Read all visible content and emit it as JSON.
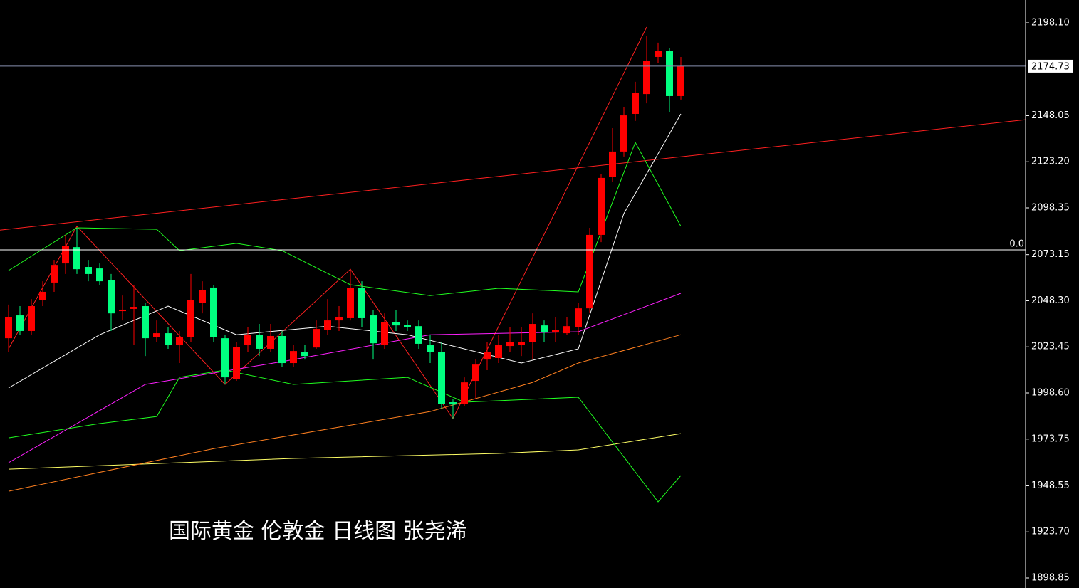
{
  "chart_data": {
    "type": "candlestick",
    "annotation": "国际黄金 伦敦金 日线图  张尧浠",
    "up_color": "#ff0000",
    "down_color": "#00ff80",
    "xlim": [
      -0.75,
      89.25
    ],
    "ylim": [
      1893.48,
      2210.38
    ],
    "yticks": [
      {
        "value": 2198.1,
        "label": "2198.10"
      },
      {
        "value": 2148.05,
        "label": "2148.05"
      },
      {
        "value": 2123.2,
        "label": "2123.20"
      },
      {
        "value": 2098.35,
        "label": "2098.35"
      },
      {
        "value": 2073.15,
        "label": "2073.15"
      },
      {
        "value": 2048.3,
        "label": "2048.30"
      },
      {
        "value": 2023.45,
        "label": "2023.45"
      },
      {
        "value": 1998.6,
        "label": "1998.60"
      },
      {
        "value": 1973.75,
        "label": "1973.75"
      },
      {
        "value": 1948.55,
        "label": "1948.55"
      },
      {
        "value": 1923.7,
        "label": "1923.70"
      },
      {
        "value": 1898.85,
        "label": "1898.85"
      }
    ],
    "price_line": 2174.73,
    "level_line": {
      "value": 2075.7,
      "label": "0.0"
    },
    "open": [
      2028.1,
      2040.4,
      2032.0,
      2048.5,
      2058.1,
      2068.4,
      2077.2,
      2066.5,
      2065.7,
      2059.6,
      2042.7,
      2043.9,
      2045.4,
      2028.9,
      2030.8,
      2024.3,
      2028.9,
      2047.3,
      2055.4,
      2028.1,
      2005.9,
      2024.3,
      2030.0,
      2022.4,
      2029.3,
      2014.7,
      2020.5,
      2023.1,
      2032.7,
      2037.7,
      2038.9,
      2055.0,
      2040.4,
      2024.3,
      2036.6,
      2035.4,
      2034.6,
      2024.3,
      2020.5,
      1993.6,
      1992.8,
      2005.1,
      2016.6,
      2017.4,
      2023.9,
      2024.3,
      2026.2,
      2035.0,
      2031.2,
      2030.8,
      2033.9,
      2044.2,
      2083.8,
      2115.2,
      2128.7,
      2149.0,
      2159.7,
      2179.7,
      2182.8,
      2158.6
    ],
    "high": [
      2046.2,
      2045.4,
      2049.2,
      2058.8,
      2070.3,
      2083.8,
      2087.6,
      2070.3,
      2068.4,
      2062.7,
      2051.1,
      2056.9,
      2047.3,
      2037.7,
      2033.9,
      2032.0,
      2062.7,
      2058.8,
      2056.9,
      2030.0,
      2026.2,
      2033.9,
      2035.8,
      2035.8,
      2032.0,
      2024.3,
      2024.3,
      2037.7,
      2049.2,
      2045.4,
      2064.6,
      2058.8,
      2043.5,
      2041.5,
      2043.5,
      2037.7,
      2037.7,
      2030.0,
      2026.2,
      1995.5,
      2007.0,
      2016.6,
      2026.2,
      2030.0,
      2033.9,
      2033.9,
      2041.5,
      2037.7,
      2039.6,
      2039.6,
      2047.3,
      2087.6,
      2116.4,
      2141.3,
      2152.8,
      2166.3,
      2191.2,
      2187.4,
      2184.3,
      2179.7
    ],
    "low": [
      2020.5,
      2030.0,
      2030.0,
      2045.4,
      2053.1,
      2062.7,
      2062.7,
      2058.8,
      2056.9,
      2032.0,
      2037.7,
      2024.3,
      2018.5,
      2026.2,
      2022.4,
      2014.7,
      2026.2,
      2041.5,
      2026.2,
      2003.2,
      2005.1,
      2020.5,
      2018.5,
      2020.5,
      2012.8,
      2012.8,
      2016.6,
      2022.4,
      2030.0,
      2032.0,
      2037.7,
      2033.9,
      2016.6,
      2022.4,
      2032.0,
      2032.0,
      2022.4,
      2014.7,
      1989.8,
      1984.8,
      1991.7,
      1995.5,
      2010.9,
      2014.7,
      2020.5,
      2018.5,
      2016.6,
      2026.2,
      2026.2,
      2030.0,
      2030.0,
      2041.5,
      2079.9,
      2112.5,
      2126.0,
      2145.2,
      2154.7,
      2176.6,
      2150.1,
      2156.7
    ],
    "close": [
      2039.6,
      2032.0,
      2045.4,
      2053.1,
      2067.6,
      2078.0,
      2065.3,
      2062.7,
      2058.8,
      2041.5,
      2043.5,
      2045.0,
      2028.1,
      2030.8,
      2024.3,
      2028.9,
      2048.5,
      2054.2,
      2028.9,
      2007.0,
      2023.5,
      2030.0,
      2022.4,
      2029.3,
      2014.7,
      2021.2,
      2018.5,
      2033.1,
      2037.7,
      2039.6,
      2055.0,
      2038.9,
      2025.4,
      2036.6,
      2035.0,
      2033.9,
      2025.1,
      2020.5,
      1992.8,
      1992.4,
      2004.3,
      2013.9,
      2020.5,
      2024.3,
      2026.2,
      2026.2,
      2035.8,
      2031.2,
      2032.7,
      2034.6,
      2044.2,
      2083.8,
      2114.5,
      2128.7,
      2148.2,
      2160.5,
      2177.4,
      2182.8,
      2158.6,
      2174.73
    ],
    "lines": [
      {
        "color": "#ff2020",
        "x": [
          -0.75,
          89.25
        ],
        "values": [
          2086.4,
          2145.9
        ]
      },
      {
        "color": "#ff2020",
        "x": [
          0,
          6,
          19,
          30,
          39,
          56
        ],
        "values": [
          2022.4,
          2088.4,
          2003.2,
          2065.3,
          1984.8,
          2195.8
        ]
      },
      {
        "color": "#ffff66",
        "x": [
          0,
          25,
          43,
          50,
          59
        ],
        "values": [
          1957.5,
          1963.3,
          1966.0,
          1967.9,
          1976.7
        ]
      },
      {
        "color": "#ff8020",
        "x": [
          0,
          18,
          37,
          46,
          50,
          59
        ],
        "values": [
          1945.6,
          1968.6,
          1988.6,
          2004.3,
          2014.7,
          2030.0
        ]
      },
      {
        "color": "#ff20ff",
        "x": [
          0,
          12,
          24,
          37,
          50,
          59
        ],
        "values": [
          1961.0,
          2003.2,
          2015.5,
          2030.0,
          2031.6,
          2052.3
        ]
      },
      {
        "color": "#ffffff",
        "x": [
          0,
          8,
          14,
          20,
          28,
          35,
          45,
          50,
          54,
          59
        ],
        "values": [
          2001.3,
          2030.0,
          2045.4,
          2030.0,
          2034.6,
          2030.0,
          2014.7,
          2022.4,
          2095.3,
          2149.0
        ]
      },
      {
        "color": "#20ff20",
        "x": [
          0,
          6,
          13,
          15,
          20,
          24,
          30,
          37,
          43,
          50,
          55,
          59
        ],
        "values": [
          2064.6,
          2087.6,
          2086.8,
          2075.3,
          2079.2,
          2075.3,
          2056.9,
          2051.1,
          2055.0,
          2053.1,
          2133.6,
          2088.4
        ]
      },
      {
        "color": "#20ff20",
        "x": [
          0,
          8,
          13,
          15,
          19,
          25,
          35,
          40,
          50,
          57,
          59
        ],
        "values": [
          1974.4,
          1982.1,
          1985.9,
          2007.0,
          2010.9,
          2003.2,
          2007.0,
          1993.6,
          1996.3,
          1939.9,
          1954.1
        ]
      }
    ]
  }
}
